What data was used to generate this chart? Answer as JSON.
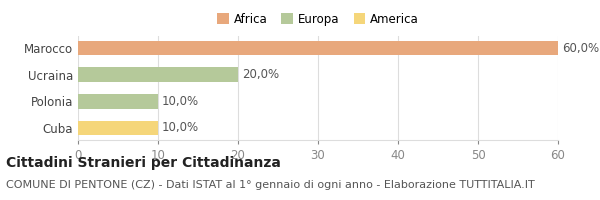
{
  "categories": [
    "Cuba",
    "Polonia",
    "Ucraina",
    "Marocco"
  ],
  "values": [
    10.0,
    10.0,
    20.0,
    60.0
  ],
  "colors": [
    "#f5d67a",
    "#b5c99a",
    "#b5c99a",
    "#e8a87c"
  ],
  "legend": [
    {
      "label": "Africa",
      "color": "#e8a87c"
    },
    {
      "label": "Europa",
      "color": "#b5c99a"
    },
    {
      "label": "America",
      "color": "#f5d67a"
    }
  ],
  "xlim": [
    0,
    60
  ],
  "xticks": [
    0,
    10,
    20,
    30,
    40,
    50,
    60
  ],
  "title_bold": "Cittadini Stranieri per Cittadinanza",
  "subtitle": "COMUNE DI PENTONE (CZ) - Dati ISTAT al 1° gennaio di ogni anno - Elaborazione TUTTITALIA.IT",
  "background_color": "#ffffff",
  "grid_color": "#dddddd",
  "label_fontsize": 8.5,
  "tick_fontsize": 8.5,
  "title_fontsize": 10,
  "subtitle_fontsize": 8
}
